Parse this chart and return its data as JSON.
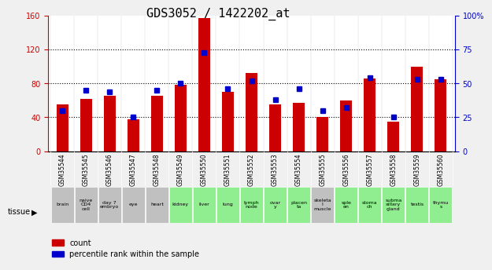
{
  "title": "GDS3052 / 1422202_at",
  "gsm_ids": [
    "GSM35544",
    "GSM35545",
    "GSM35546",
    "GSM35547",
    "GSM35548",
    "GSM35549",
    "GSM35550",
    "GSM35551",
    "GSM35552",
    "GSM35553",
    "GSM35554",
    "GSM35555",
    "GSM35556",
    "GSM35557",
    "GSM35558",
    "GSM35559",
    "GSM35560"
  ],
  "tissues": [
    "brain",
    "naive\nCD4\ncell",
    "day 7\nembryо",
    "eye",
    "heart",
    "kidney",
    "liver",
    "lung",
    "lymph\nnode",
    "ovar\ny",
    "placen\nta",
    "skeleta\nl\nmuscle",
    "sple\nen",
    "stoma\nch",
    "subma\nxillary\ngland",
    "testis",
    "thymu\ns"
  ],
  "tissue_colors": [
    "#c0c0c0",
    "#c0c0c0",
    "#c0c0c0",
    "#c0c0c0",
    "#c0c0c0",
    "#90ee90",
    "#90ee90",
    "#90ee90",
    "#90ee90",
    "#90ee90",
    "#90ee90",
    "#c0c0c0",
    "#90ee90",
    "#90ee90",
    "#90ee90",
    "#90ee90",
    "#90ee90"
  ],
  "counts": [
    55,
    62,
    65,
    38,
    65,
    78,
    157,
    70,
    92,
    55,
    57,
    40,
    60,
    86,
    35,
    100,
    85
  ],
  "percentile_ranks": [
    30,
    45,
    44,
    25,
    45,
    50,
    73,
    46,
    52,
    38,
    46,
    30,
    32,
    54,
    25,
    53,
    53
  ],
  "ylim_left": [
    0,
    160
  ],
  "ylim_right": [
    0,
    100
  ],
  "yticks_left": [
    0,
    40,
    80,
    120,
    160
  ],
  "yticks_right": [
    0,
    25,
    50,
    75,
    100
  ],
  "bar_color": "#cc0000",
  "dot_color": "#0000cc",
  "bg_color": "#f0f0f0",
  "plot_bg": "#ffffff",
  "left_label_color": "#cc0000",
  "right_label_color": "#0000cc",
  "legend_count_label": "count",
  "legend_pct_label": "percentile rank within the sample",
  "title_fontsize": 11,
  "axis_fontsize": 8,
  "tick_fontsize": 7
}
